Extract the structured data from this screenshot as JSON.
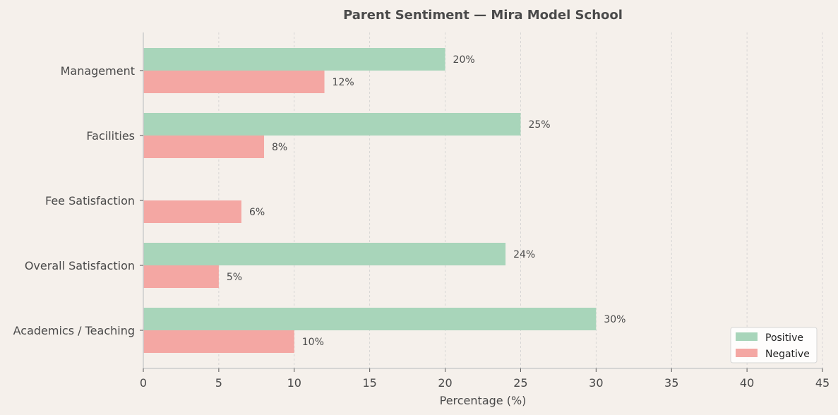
{
  "chart_data": {
    "type": "bar",
    "orientation": "horizontal",
    "title": "Parent Sentiment — Mira Model School",
    "xlabel": "Percentage (%)",
    "ylabel": "",
    "xlim": [
      0,
      45
    ],
    "xticks": [
      0,
      5,
      10,
      15,
      20,
      25,
      30,
      35,
      40,
      45
    ],
    "grid": "vertical dashed",
    "legend_position": "bottom-right",
    "categories": [
      "Management",
      "Facilities",
      "Fee Satisfaction",
      "Overall Satisfaction",
      "Academics / Teaching"
    ],
    "series": [
      {
        "name": "Positive",
        "color": "#a8d5ba",
        "values": [
          20,
          25,
          0,
          24,
          30
        ],
        "labels": [
          "20%",
          "25%",
          "",
          "24%",
          "30%"
        ]
      },
      {
        "name": "Negative",
        "color": "#f4a7a3",
        "values": [
          12,
          8,
          6.5,
          5,
          10
        ],
        "labels": [
          "12%",
          "8%",
          "6%",
          "5%",
          "10%"
        ]
      }
    ]
  }
}
